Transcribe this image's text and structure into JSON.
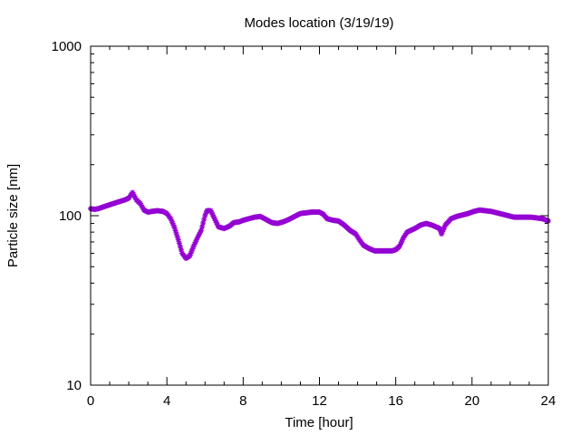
{
  "chart_data": {
    "type": "scatter",
    "title": "Modes location (3/19/19)",
    "xlabel": "Time [hour]",
    "ylabel": "Particle size [nm]",
    "xlim": [
      0,
      24
    ],
    "ylim": [
      10,
      1000
    ],
    "yscale": "log",
    "xticks": [
      0,
      4,
      8,
      12,
      16,
      20,
      24
    ],
    "yticks": [
      10,
      100,
      1000
    ],
    "grid": false,
    "legend": "none",
    "marker": "asterisk",
    "series": [
      {
        "color": "#9400d3",
        "points": [
          [
            0.0,
            110
          ],
          [
            0.2,
            109
          ],
          [
            0.4,
            110
          ],
          [
            0.6,
            112
          ],
          [
            0.8,
            114
          ],
          [
            1.0,
            116
          ],
          [
            1.2,
            118
          ],
          [
            1.4,
            120
          ],
          [
            1.6,
            122
          ],
          [
            1.8,
            124
          ],
          [
            2.0,
            127
          ],
          [
            2.1,
            132
          ],
          [
            2.2,
            137
          ],
          [
            2.3,
            130
          ],
          [
            2.4,
            124
          ],
          [
            2.6,
            118
          ],
          [
            2.8,
            108
          ],
          [
            3.0,
            105
          ],
          [
            3.2,
            106
          ],
          [
            3.5,
            107
          ],
          [
            3.8,
            106
          ],
          [
            4.0,
            103
          ],
          [
            4.2,
            96
          ],
          [
            4.4,
            85
          ],
          [
            4.6,
            72
          ],
          [
            4.8,
            60
          ],
          [
            5.0,
            56
          ],
          [
            5.2,
            58
          ],
          [
            5.4,
            66
          ],
          [
            5.6,
            74
          ],
          [
            5.8,
            82
          ],
          [
            6.0,
            100
          ],
          [
            6.1,
            107
          ],
          [
            6.3,
            107
          ],
          [
            6.5,
            96
          ],
          [
            6.7,
            86
          ],
          [
            7.0,
            84
          ],
          [
            7.3,
            87
          ],
          [
            7.5,
            91
          ],
          [
            7.8,
            92
          ],
          [
            8.0,
            94
          ],
          [
            8.3,
            96
          ],
          [
            8.6,
            98
          ],
          [
            8.9,
            99
          ],
          [
            9.2,
            95
          ],
          [
            9.5,
            91
          ],
          [
            9.8,
            90
          ],
          [
            10.1,
            92
          ],
          [
            10.4,
            95
          ],
          [
            10.7,
            99
          ],
          [
            11.0,
            103
          ],
          [
            11.3,
            104
          ],
          [
            11.6,
            105
          ],
          [
            12.0,
            105
          ],
          [
            12.2,
            102
          ],
          [
            12.4,
            96
          ],
          [
            12.7,
            94
          ],
          [
            13.0,
            93
          ],
          [
            13.3,
            88
          ],
          [
            13.6,
            82
          ],
          [
            13.9,
            78
          ],
          [
            14.1,
            72
          ],
          [
            14.3,
            67
          ],
          [
            14.6,
            64
          ],
          [
            14.9,
            62
          ],
          [
            15.2,
            62
          ],
          [
            15.5,
            62
          ],
          [
            15.8,
            62
          ],
          [
            16.0,
            63
          ],
          [
            16.2,
            66
          ],
          [
            16.4,
            74
          ],
          [
            16.6,
            80
          ],
          [
            16.8,
            82
          ],
          [
            17.0,
            84
          ],
          [
            17.3,
            88
          ],
          [
            17.6,
            90
          ],
          [
            17.9,
            88
          ],
          [
            18.1,
            86
          ],
          [
            18.3,
            84
          ],
          [
            18.4,
            78
          ],
          [
            18.6,
            88
          ],
          [
            18.9,
            96
          ],
          [
            19.2,
            99
          ],
          [
            19.5,
            101
          ],
          [
            19.8,
            103
          ],
          [
            20.1,
            106
          ],
          [
            20.4,
            108
          ],
          [
            20.7,
            107
          ],
          [
            21.0,
            106
          ],
          [
            21.3,
            104
          ],
          [
            21.6,
            102
          ],
          [
            21.9,
            100
          ],
          [
            22.2,
            98
          ],
          [
            22.5,
            98
          ],
          [
            22.8,
            98
          ],
          [
            23.1,
            98
          ],
          [
            23.4,
            97
          ],
          [
            23.7,
            96
          ],
          [
            24.0,
            93
          ]
        ]
      }
    ]
  }
}
